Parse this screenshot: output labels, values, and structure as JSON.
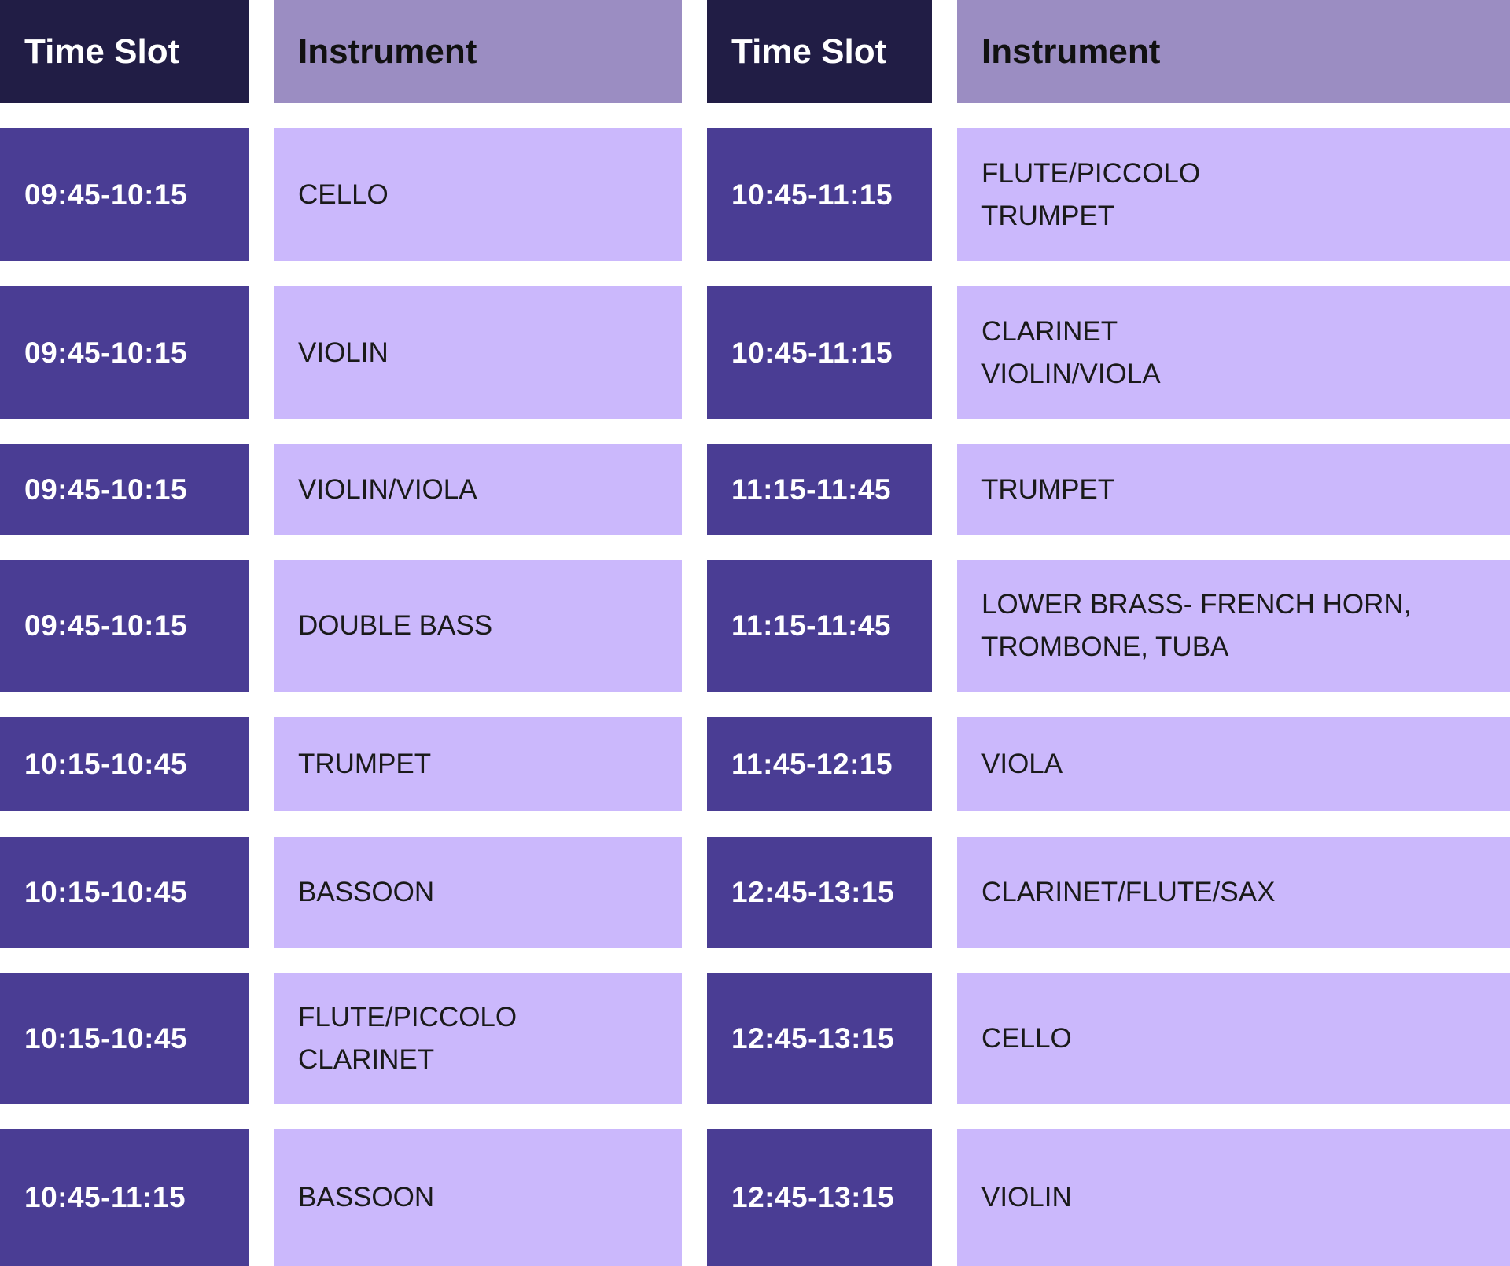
{
  "headers": [
    "Time Slot",
    "Instrument",
    "Time Slot",
    "Instrument"
  ],
  "rows": [
    {
      "left_time": "09:45-10:15",
      "left_instrument": "CELLO",
      "right_time": "10:45-11:15",
      "right_instrument": "FLUTE/PICCOLO\nTRUMPET"
    },
    {
      "left_time": "09:45-10:15",
      "left_instrument": "VIOLIN",
      "right_time": "10:45-11:15",
      "right_instrument": "CLARINET\nVIOLIN/VIOLA"
    },
    {
      "left_time": "09:45-10:15",
      "left_instrument": "VIOLIN/VIOLA",
      "right_time": "11:15-11:45",
      "right_instrument": "TRUMPET"
    },
    {
      "left_time": "09:45-10:15",
      "left_instrument": "DOUBLE BASS",
      "right_time": "11:15-11:45",
      "right_instrument": "LOWER BRASS- FRENCH HORN,\nTROMBONE, TUBA"
    },
    {
      "left_time": "10:15-10:45",
      "left_instrument": "TRUMPET",
      "right_time": "11:45-12:15",
      "right_instrument": "VIOLA"
    },
    {
      "left_time": "10:15-10:45",
      "left_instrument": "BASSOON",
      "right_time": "12:45-13:15",
      "right_instrument": "CLARINET/FLUTE/SAX"
    },
    {
      "left_time": "10:15-10:45",
      "left_instrument": "FLUTE/PICCOLO\nCLARINET",
      "right_time": "12:45-13:15",
      "right_instrument": "CELLO"
    },
    {
      "left_time": "10:45-11:15",
      "left_instrument": "BASSOON",
      "right_time": "12:45-13:15",
      "right_instrument": "VIOLIN"
    }
  ],
  "colors": {
    "header_dark": "#211d45",
    "header_light": "#9b8dc2",
    "time_cell": "#4a3d94",
    "instrument_cell": "#cbb8fc"
  }
}
